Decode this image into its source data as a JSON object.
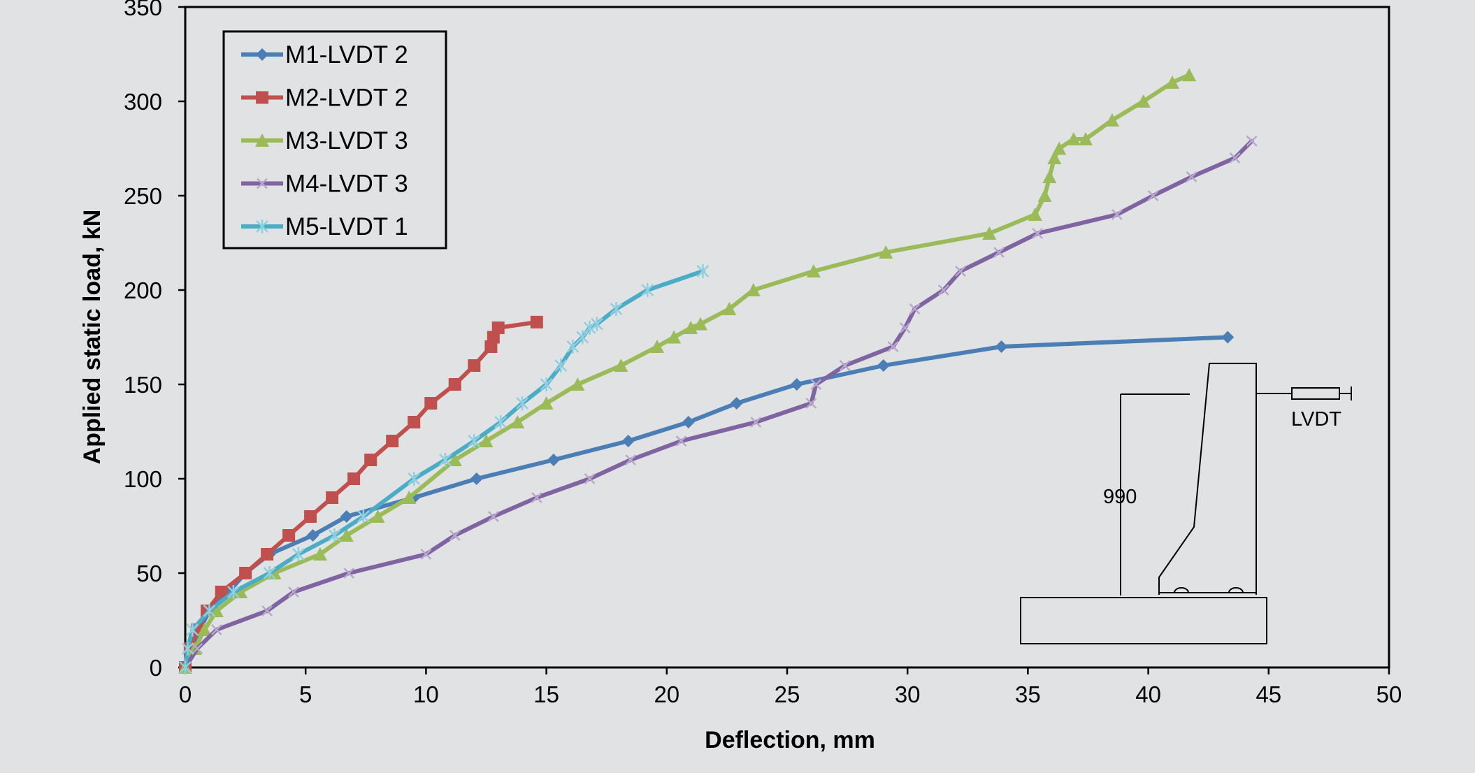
{
  "chart_data": {
    "type": "line",
    "title": "",
    "xlabel": "Deflection, mm",
    "ylabel": "Applied static load, kN",
    "xlim": [
      0,
      50
    ],
    "ylim": [
      0,
      350
    ],
    "xticks": [
      0,
      5,
      10,
      15,
      20,
      25,
      30,
      35,
      40,
      45,
      50
    ],
    "yticks": [
      0,
      50,
      100,
      150,
      200,
      250,
      300,
      350
    ],
    "grid": false,
    "legend_position": "top-left",
    "series": [
      {
        "name": "M1-LVDT 2",
        "color": "#4a7eb5",
        "marker": "diamond",
        "x": [
          0,
          0.3,
          0.6,
          1.0,
          1.8,
          2.5,
          3.5,
          5.3,
          6.7,
          9.5,
          12.1,
          15.3,
          18.4,
          20.9,
          22.9,
          25.4,
          29.0,
          33.9,
          43.3
        ],
        "y": [
          0,
          10,
          20,
          30,
          40,
          50,
          60,
          70,
          80,
          90,
          100,
          110,
          120,
          130,
          140,
          150,
          160,
          170,
          175
        ]
      },
      {
        "name": "M2-LVDT 2",
        "color": "#c0504d",
        "marker": "square",
        "x": [
          0,
          0.2,
          0.5,
          0.9,
          1.5,
          2.5,
          3.4,
          4.3,
          5.2,
          6.1,
          7.0,
          7.7,
          8.6,
          9.5,
          10.2,
          11.2,
          12.0,
          12.7,
          12.8,
          13.0,
          14.6
        ],
        "y": [
          0,
          10,
          20,
          30,
          40,
          50,
          60,
          70,
          80,
          90,
          100,
          110,
          120,
          130,
          140,
          150,
          160,
          170,
          175,
          180,
          183
        ]
      },
      {
        "name": "M3-LVDT 3",
        "color": "#9bbb59",
        "marker": "triangle",
        "x": [
          0,
          0.4,
          0.8,
          1.3,
          2.3,
          3.7,
          5.6,
          6.7,
          8.0,
          9.3,
          11.2,
          12.5,
          13.8,
          15.0,
          16.3,
          18.1,
          19.6,
          20.3,
          21.0,
          21.4,
          22.6,
          23.6,
          26.1,
          29.1,
          33.4,
          35.3,
          35.7,
          35.9,
          36.1,
          36.3,
          36.9,
          37.4,
          38.5,
          39.8,
          41.0,
          41.7
        ],
        "y": [
          0,
          10,
          20,
          30,
          40,
          50,
          60,
          70,
          80,
          90,
          110,
          120,
          130,
          140,
          150,
          160,
          170,
          175,
          180,
          182,
          190,
          200,
          210,
          220,
          230,
          240,
          250,
          260,
          270,
          275,
          280,
          280,
          290,
          300,
          310,
          314
        ]
      },
      {
        "name": "M4-LVDT 3",
        "color": "#8064a2",
        "marker": "x",
        "x": [
          0,
          0.5,
          1.3,
          3.4,
          4.5,
          6.8,
          10.0,
          11.2,
          12.8,
          14.6,
          16.8,
          18.5,
          20.6,
          23.7,
          26.0,
          26.2,
          27.4,
          29.4,
          29.9,
          30.3,
          31.5,
          32.2,
          33.8,
          35.4,
          38.7,
          40.2,
          41.8,
          43.6,
          44.3
        ],
        "y": [
          0,
          10,
          20,
          30,
          40,
          50,
          60,
          70,
          80,
          90,
          100,
          110,
          120,
          130,
          140,
          150,
          160,
          170,
          180,
          190,
          200,
          210,
          220,
          230,
          240,
          250,
          260,
          270,
          279
        ]
      },
      {
        "name": "M5-LVDT 1",
        "color": "#4bacc6",
        "marker": "asterisk",
        "x": [
          0,
          0.1,
          0.3,
          1.0,
          2.0,
          3.5,
          4.7,
          6.2,
          7.4,
          9.5,
          10.8,
          12.0,
          13.1,
          14.0,
          15.0,
          15.6,
          16.1,
          16.5,
          16.8,
          17.1,
          17.9,
          19.2,
          21.5
        ],
        "y": [
          0,
          10,
          20,
          30,
          40,
          50,
          60,
          70,
          80,
          100,
          110,
          120,
          130,
          140,
          150,
          160,
          170,
          175,
          180,
          182,
          190,
          200,
          210
        ]
      }
    ],
    "inset": {
      "dimension_label": "990",
      "sensor_label": "LVDT"
    }
  }
}
